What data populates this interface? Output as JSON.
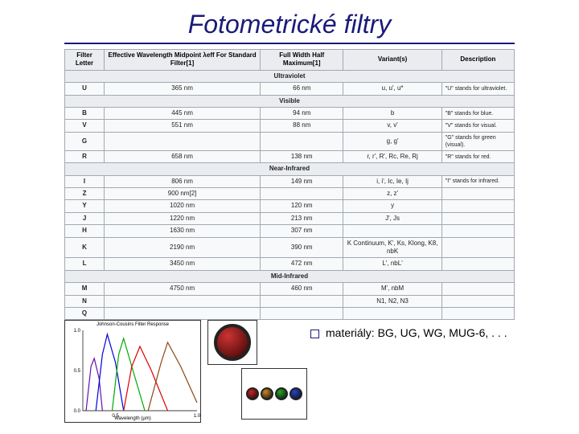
{
  "title": "Fotometrické filtry",
  "table": {
    "headers": [
      "Filter Letter",
      "Effective Wavelength Midpoint λeff For Standard Filter[1]",
      "Full Width Half Maximum[1]",
      "Variant(s)",
      "Description"
    ],
    "sections": [
      {
        "name": "Ultraviolet",
        "rows": [
          {
            "letter": "U",
            "wl": "365 nm",
            "fwhm": "66 nm",
            "variants": "u, u', u*",
            "desc": "\"U\" stands for ultraviolet."
          }
        ]
      },
      {
        "name": "Visible",
        "rows": [
          {
            "letter": "B",
            "wl": "445 nm",
            "fwhm": "94 nm",
            "variants": "b",
            "desc": "\"B\" stands for blue."
          },
          {
            "letter": "V",
            "wl": "551 nm",
            "fwhm": "88 nm",
            "variants": "v, v'",
            "desc": "\"V\" stands for visual."
          },
          {
            "letter": "G",
            "wl": "",
            "fwhm": "",
            "variants": "g, g'",
            "desc": "\"G\" stands for green (visual)."
          },
          {
            "letter": "R",
            "wl": "658 nm",
            "fwhm": "138 nm",
            "variants": "r, r', R', Rc, Re, Rj",
            "desc": "\"R\" stands for red."
          }
        ]
      },
      {
        "name": "Near-Infrared",
        "rows": [
          {
            "letter": "I",
            "wl": "806 nm",
            "fwhm": "149 nm",
            "variants": "i, i', Ic, Ie, Ij",
            "desc": "\"I\" stands for infrared."
          },
          {
            "letter": "Z",
            "wl": "900 nm[2]",
            "fwhm": "",
            "variants": "z, z'",
            "desc": ""
          },
          {
            "letter": "Y",
            "wl": "1020 nm",
            "fwhm": "120 nm",
            "variants": "y",
            "desc": ""
          },
          {
            "letter": "J",
            "wl": "1220 nm",
            "fwhm": "213 nm",
            "variants": "J', Js",
            "desc": ""
          },
          {
            "letter": "H",
            "wl": "1630 nm",
            "fwhm": "307 nm",
            "variants": "",
            "desc": ""
          },
          {
            "letter": "K",
            "wl": "2190 nm",
            "fwhm": "390 nm",
            "variants": "K Continuum, K', Ks, Klong, K8, nbK",
            "desc": ""
          },
          {
            "letter": "L",
            "wl": "3450 nm",
            "fwhm": "472 nm",
            "variants": "L', nbL'",
            "desc": ""
          }
        ]
      },
      {
        "name": "Mid-Infrared",
        "rows": [
          {
            "letter": "M",
            "wl": "4750 nm",
            "fwhm": "460 nm",
            "variants": "M', nbM",
            "desc": ""
          },
          {
            "letter": "N",
            "wl": "",
            "fwhm": "",
            "variants": "N1, N2, N3",
            "desc": ""
          },
          {
            "letter": "Q",
            "wl": "",
            "fwhm": "",
            "variants": "",
            "desc": ""
          }
        ]
      }
    ]
  },
  "chart": {
    "title": "Johnson-Cousins Filter Response",
    "xlabel": "Wavelength (µm)",
    "ylabel": "Response",
    "x_ticks": [
      "0.5",
      "1.0"
    ],
    "y_ticks": [
      "0.0",
      "0.5",
      "1.0"
    ],
    "xlim": [
      0.3,
      1.0
    ],
    "ylim": [
      0,
      1.0
    ],
    "curves": [
      {
        "name": "U",
        "color": "#6a0dad",
        "points": [
          [
            0.32,
            0
          ],
          [
            0.35,
            0.55
          ],
          [
            0.37,
            0.65
          ],
          [
            0.4,
            0.4
          ],
          [
            0.42,
            0
          ]
        ]
      },
      {
        "name": "B",
        "color": "#0000dd",
        "points": [
          [
            0.38,
            0
          ],
          [
            0.42,
            0.7
          ],
          [
            0.45,
            0.95
          ],
          [
            0.5,
            0.6
          ],
          [
            0.55,
            0
          ]
        ]
      },
      {
        "name": "V",
        "color": "#00aa00",
        "points": [
          [
            0.48,
            0
          ],
          [
            0.52,
            0.7
          ],
          [
            0.55,
            0.9
          ],
          [
            0.6,
            0.55
          ],
          [
            0.68,
            0
          ]
        ]
      },
      {
        "name": "R",
        "color": "#dd0000",
        "points": [
          [
            0.55,
            0
          ],
          [
            0.6,
            0.55
          ],
          [
            0.65,
            0.8
          ],
          [
            0.72,
            0.5
          ],
          [
            0.82,
            0
          ]
        ]
      },
      {
        "name": "I",
        "color": "#8b4513",
        "points": [
          [
            0.7,
            0
          ],
          [
            0.78,
            0.6
          ],
          [
            0.82,
            0.85
          ],
          [
            0.9,
            0.55
          ],
          [
            1.0,
            0.1
          ]
        ]
      }
    ],
    "background_color": "#ffffff",
    "axis_color": "#000000"
  },
  "materials_label": "materiály: BG, UG, WG, MUG-6, . . .",
  "filter_set_colors": [
    "#cc2222",
    "#cc8822",
    "#22aa22",
    "#2244cc"
  ],
  "colors": {
    "title": "#1a1a7a",
    "border": "#a2a9b1",
    "header_bg": "#eaecf0"
  }
}
